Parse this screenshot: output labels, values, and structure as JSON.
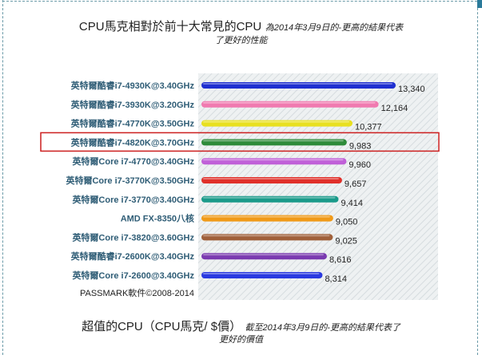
{
  "title": {
    "main": "CPU馬克相對於前十大常見的CPU",
    "sub": "為2014年3月9日的-更高的結果代表",
    "sub2": "了更好的性能"
  },
  "bottom": {
    "main": "超值的CPU（CPU馬克/ $價）",
    "sub": "截至2014年3月9日的-更高的結果代表了",
    "sub2": "更好的價值"
  },
  "chart_data": {
    "type": "bar",
    "orientation": "horizontal",
    "credit": "PASSMARK軟件©2008-2014",
    "highlighted_category": "英特爾酷睿i7-4820K@3.70GHz",
    "highlight_color": "#cc1f1f",
    "xlim": [
      0,
      13340
    ],
    "categories": [
      "英特爾酷睿i7-4930K@3.40GHz",
      "英特爾酷睿i7-3930K@3.20GHz",
      "英特爾酷睿i7-4770K@3.50GHz",
      "英特爾酷睿i7-4820K@3.70GHz",
      "英特爾Core i7-4770@3.40GHz",
      "英特爾Core i7-3770K@3.50GHz",
      "英特爾Core i7-3770@3.40GHz",
      "AMD FX-8350八核",
      "英特爾Core i7-3820@3.60GHz",
      "英特爾酷睿i7-2600K@3.40GHz",
      "英特爾Core i7-2600@3.40GHz"
    ],
    "values": [
      13340,
      12164,
      10377,
      9983,
      9960,
      9657,
      9414,
      9050,
      9025,
      8616,
      8314
    ],
    "value_labels": [
      "13,340",
      "12,164",
      "10,377",
      "9,983",
      "9,960",
      "9,657",
      "9,414",
      "9,050",
      "9,025",
      "8,616",
      "8,314"
    ],
    "colors": [
      "#1f2fd0",
      "#f07ab0",
      "#e8e020",
      "#2e8b3a",
      "#c060d8",
      "#e0302a",
      "#1a9a8a",
      "#f09a18",
      "#a0603a",
      "#7a3ab0",
      "#2a3ae0"
    ]
  }
}
